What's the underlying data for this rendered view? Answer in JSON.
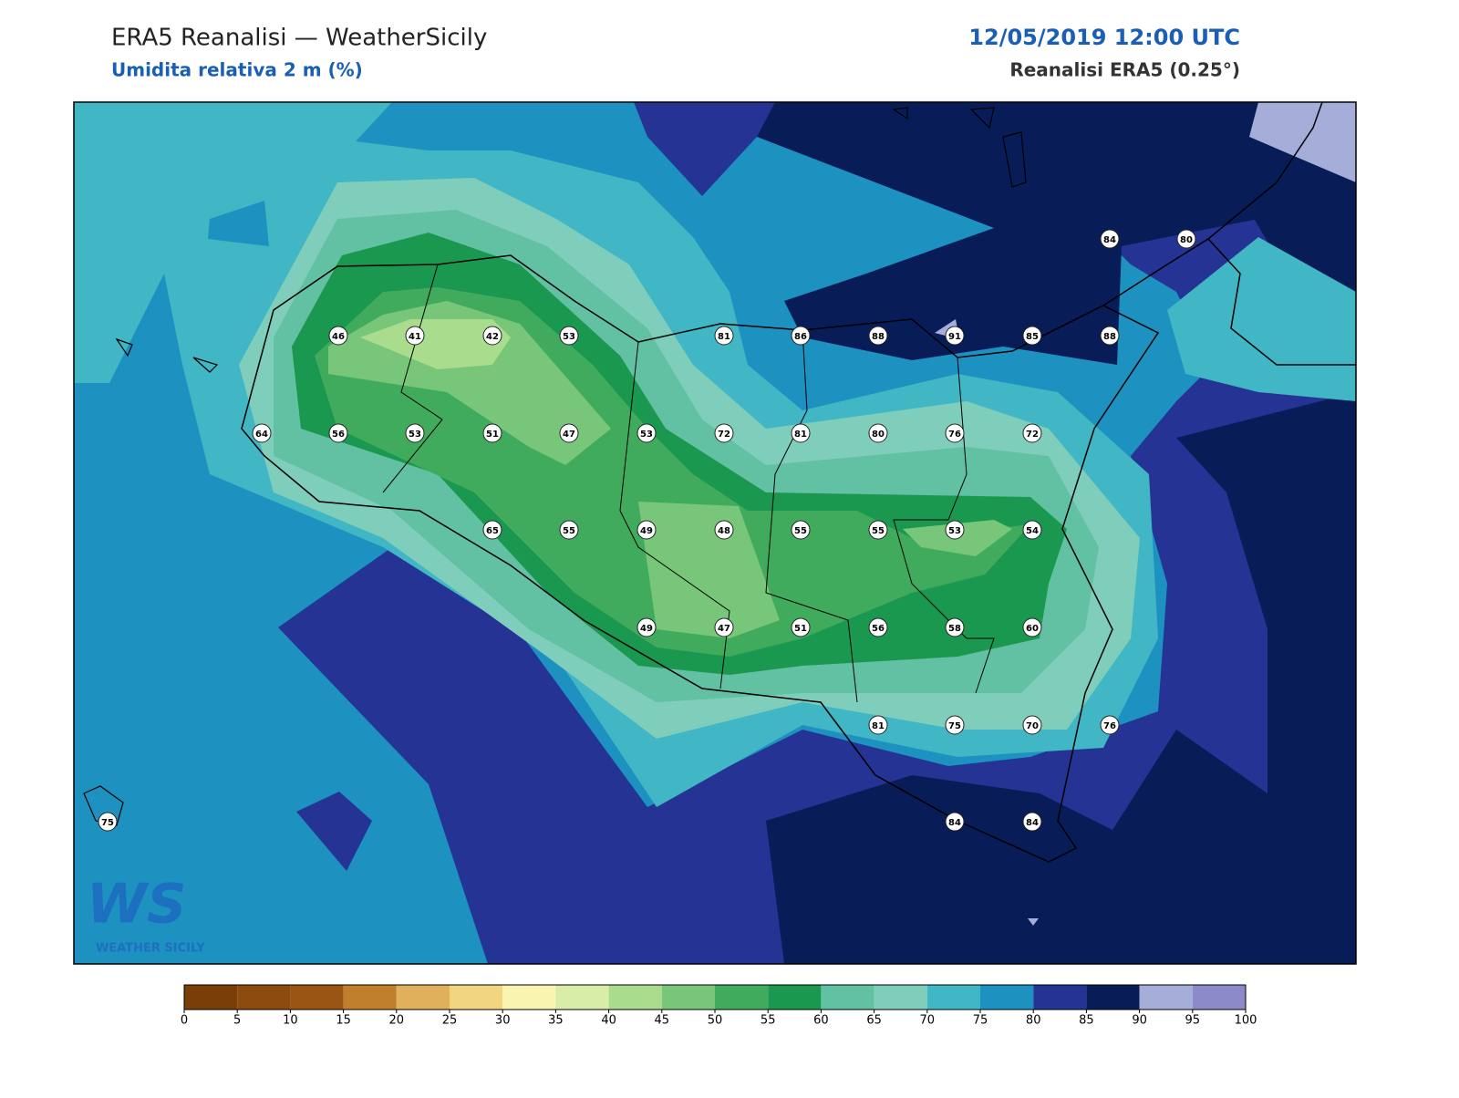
{
  "header": {
    "title": "ERA5 Reanalisi — WeatherSicily",
    "subtitle": "Umidita relativa 2 m (%)",
    "datetime": "12/05/2019 12:00 UTC",
    "source": "Reanalisi ERA5 (0.25°)"
  },
  "logo": {
    "mark": "WS",
    "text": "WEATHER SICILY"
  },
  "stations": [
    84,
    80,
    46,
    41,
    42,
    53,
    81,
    86,
    88,
    91,
    85,
    88,
    64,
    56,
    53,
    51,
    47,
    53,
    72,
    81,
    80,
    76,
    72,
    65,
    55,
    49,
    48,
    55,
    55,
    53,
    54,
    49,
    47,
    51,
    56,
    58,
    60,
    81,
    75,
    70,
    76,
    75,
    84,
    84
  ],
  "colorbar": {
    "ticks": [
      0,
      5,
      10,
      15,
      20,
      25,
      30,
      35,
      40,
      45,
      50,
      55,
      60,
      65,
      70,
      75,
      80,
      85,
      90,
      95,
      100
    ],
    "colors": [
      "#7a3f08",
      "#8b4a0e",
      "#9a5414",
      "#c07f2c",
      "#e1b05c",
      "#f1d67f",
      "#f7f5b0",
      "#d7eda8",
      "#a9dc8d",
      "#78c679",
      "#41ab5d",
      "#1b9850",
      "#62c0a3",
      "#7fcdbb",
      "#41b6c4",
      "#1d91c0",
      "#253494",
      "#081d58",
      "#a5add9",
      "#8c8ac8"
    ]
  }
}
